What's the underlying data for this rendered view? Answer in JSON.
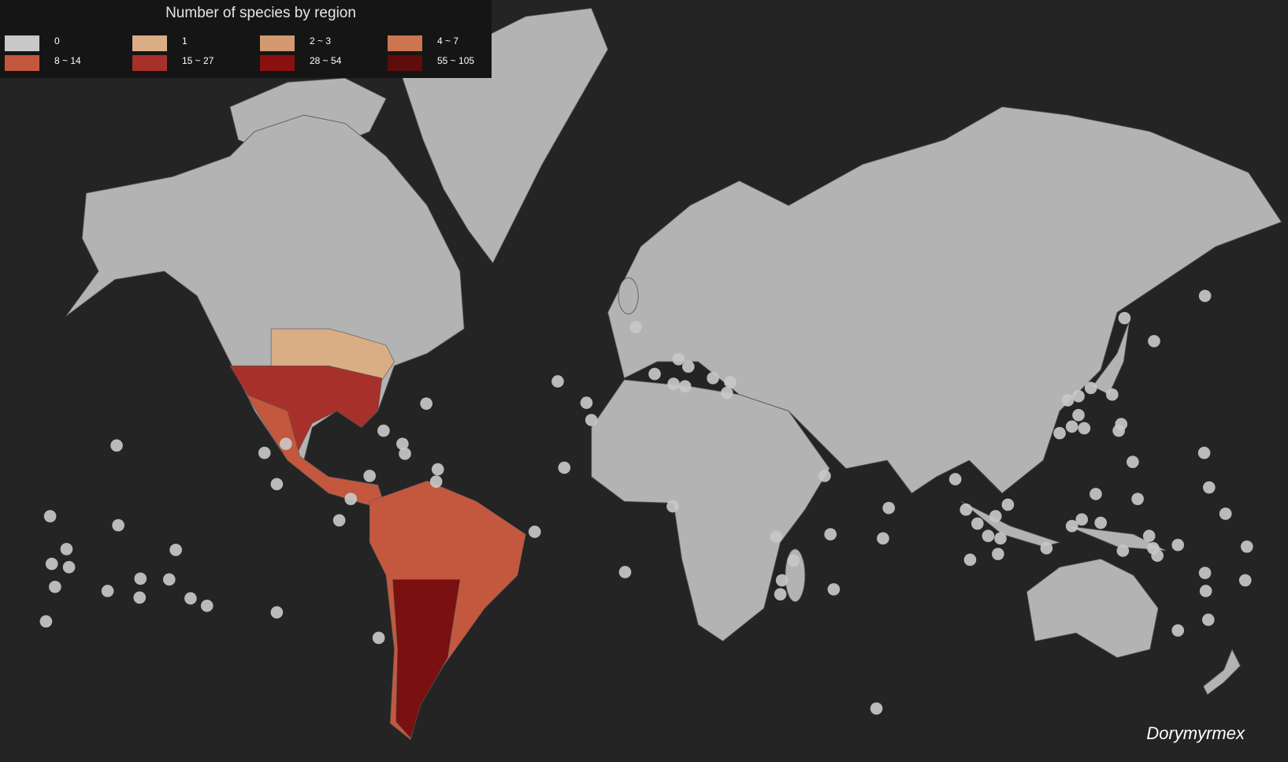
{
  "legend": {
    "title": "Number of species by region",
    "items": [
      {
        "label": "0",
        "color": "#c8c8c8"
      },
      {
        "label": "1",
        "color": "#d9ae85"
      },
      {
        "label": "2 ~ 3",
        "color": "#d29a6e"
      },
      {
        "label": "4 ~ 7",
        "color": "#cd7450"
      },
      {
        "label": "8 ~ 14",
        "color": "#c4583f"
      },
      {
        "label": "15 ~ 27",
        "color": "#a8302b"
      },
      {
        "label": "28 ~ 54",
        "color": "#8a1010"
      },
      {
        "label": "55 ~ 105",
        "color": "#5e0c0c"
      }
    ]
  },
  "caption": "Dorymyrmex"
}
